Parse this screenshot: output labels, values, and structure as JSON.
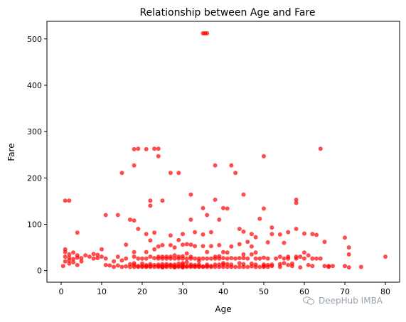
{
  "chart_data": {
    "type": "scatter",
    "title": "Relationship between Age and Fare",
    "xlabel": "Age",
    "ylabel": "Fare",
    "xlim": [
      -3.5,
      83.5
    ],
    "ylim": [
      -25,
      538
    ],
    "xticks": [
      0,
      10,
      20,
      30,
      40,
      50,
      60,
      70,
      80
    ],
    "yticks": [
      0,
      100,
      200,
      300,
      400,
      500
    ],
    "grid": false,
    "marker_color": "#ff0000",
    "points": [
      [
        35,
        512
      ],
      [
        36,
        512
      ],
      [
        35.5,
        512
      ],
      [
        18,
        262
      ],
      [
        19,
        263
      ],
      [
        21,
        262
      ],
      [
        23,
        263
      ],
      [
        24,
        263
      ],
      [
        24,
        247
      ],
      [
        64,
        263
      ],
      [
        15,
        211
      ],
      [
        18,
        227
      ],
      [
        27,
        211
      ],
      [
        29,
        211
      ],
      [
        38,
        227
      ],
      [
        42,
        227
      ],
      [
        43,
        211
      ],
      [
        50,
        247
      ],
      [
        32,
        164
      ],
      [
        45,
        164
      ],
      [
        1,
        151
      ],
      [
        2,
        151
      ],
      [
        22,
        151
      ],
      [
        22,
        140
      ],
      [
        25,
        151
      ],
      [
        38,
        153
      ],
      [
        58,
        153
      ],
      [
        58,
        146
      ],
      [
        35,
        135
      ],
      [
        36,
        120
      ],
      [
        40,
        135
      ],
      [
        41,
        134
      ],
      [
        50,
        134
      ],
      [
        39,
        110
      ],
      [
        32,
        110
      ],
      [
        11,
        120
      ],
      [
        14,
        120
      ],
      [
        4,
        82
      ],
      [
        17,
        110
      ],
      [
        18,
        108
      ],
      [
        19,
        90
      ],
      [
        21,
        79
      ],
      [
        23,
        82
      ],
      [
        27,
        76
      ],
      [
        30,
        79
      ],
      [
        33,
        83
      ],
      [
        35,
        78
      ],
      [
        37,
        83
      ],
      [
        44,
        90
      ],
      [
        45,
        84
      ],
      [
        47,
        79
      ],
      [
        49,
        112
      ],
      [
        52,
        93
      ],
      [
        52,
        79
      ],
      [
        54,
        78
      ],
      [
        56,
        83
      ],
      [
        60,
        80
      ],
      [
        62,
        79
      ],
      [
        63,
        77
      ],
      [
        65,
        62
      ],
      [
        70,
        71
      ],
      [
        71,
        50
      ],
      [
        71,
        35
      ],
      [
        80,
        30
      ],
      [
        74,
        8
      ],
      [
        70,
        10
      ],
      [
        71,
        7
      ],
      [
        58,
        90
      ],
      [
        48,
        72
      ],
      [
        55,
        60
      ],
      [
        59,
        30
      ],
      [
        66,
        10
      ],
      [
        62,
        10
      ],
      [
        61,
        12
      ],
      [
        60,
        26
      ],
      [
        56,
        26
      ],
      [
        54,
        30
      ],
      [
        51,
        26
      ],
      [
        50,
        13
      ],
      [
        52,
        10
      ],
      [
        0.5,
        10
      ],
      [
        1,
        20
      ],
      [
        1,
        30
      ],
      [
        1,
        40
      ],
      [
        1,
        46
      ],
      [
        2,
        15
      ],
      [
        2,
        22
      ],
      [
        2,
        28
      ],
      [
        2,
        35
      ],
      [
        3,
        18
      ],
      [
        3,
        25
      ],
      [
        3,
        39
      ],
      [
        4,
        12
      ],
      [
        4,
        28
      ],
      [
        4,
        33
      ],
      [
        5,
        20
      ],
      [
        5,
        27
      ],
      [
        6,
        33
      ],
      [
        7,
        30
      ],
      [
        8,
        26
      ],
      [
        8,
        36
      ],
      [
        9,
        27
      ],
      [
        9,
        34
      ],
      [
        10,
        30
      ],
      [
        10,
        46
      ],
      [
        11,
        12
      ],
      [
        11,
        26
      ],
      [
        12,
        11
      ],
      [
        13,
        8
      ],
      [
        13,
        20
      ],
      [
        14,
        30
      ],
      [
        14,
        11
      ],
      [
        15,
        8
      ],
      [
        15,
        22
      ],
      [
        16,
        9
      ],
      [
        16,
        26
      ],
      [
        16,
        56
      ],
      [
        17,
        8
      ],
      [
        17,
        14
      ],
      [
        18,
        8
      ],
      [
        18,
        12
      ],
      [
        18,
        16
      ],
      [
        18,
        30
      ],
      [
        18,
        40
      ],
      [
        19,
        8
      ],
      [
        19,
        10
      ],
      [
        19,
        26
      ],
      [
        20,
        8
      ],
      [
        20,
        10
      ],
      [
        20,
        15
      ],
      [
        20,
        26
      ],
      [
        21,
        8
      ],
      [
        21,
        9
      ],
      [
        21,
        12
      ],
      [
        21,
        26
      ],
      [
        21,
        40
      ],
      [
        22,
        8
      ],
      [
        22,
        10
      ],
      [
        22,
        14
      ],
      [
        22,
        30
      ],
      [
        22,
        65
      ],
      [
        23,
        8
      ],
      [
        23,
        12
      ],
      [
        23,
        27
      ],
      [
        23,
        46
      ],
      [
        24,
        8
      ],
      [
        24,
        10
      ],
      [
        24,
        13
      ],
      [
        24,
        26
      ],
      [
        24,
        30
      ],
      [
        24,
        52
      ],
      [
        25,
        7
      ],
      [
        25,
        8
      ],
      [
        25,
        10
      ],
      [
        25,
        14
      ],
      [
        25,
        26
      ],
      [
        25,
        30
      ],
      [
        25,
        55
      ],
      [
        26,
        8
      ],
      [
        26,
        10
      ],
      [
        26,
        14
      ],
      [
        26,
        26
      ],
      [
        26,
        30
      ],
      [
        27,
        8
      ],
      [
        27,
        11
      ],
      [
        27,
        13
      ],
      [
        27,
        26
      ],
      [
        27,
        30
      ],
      [
        27,
        55
      ],
      [
        28,
        7
      ],
      [
        28,
        8
      ],
      [
        28,
        10
      ],
      [
        28,
        13
      ],
      [
        28,
        26
      ],
      [
        28,
        33
      ],
      [
        28,
        50
      ],
      [
        29,
        8
      ],
      [
        29,
        10
      ],
      [
        29,
        15
      ],
      [
        29,
        26
      ],
      [
        29,
        30
      ],
      [
        29,
        66
      ],
      [
        30,
        7
      ],
      [
        30,
        8
      ],
      [
        30,
        10
      ],
      [
        30,
        13
      ],
      [
        30,
        16
      ],
      [
        30,
        26
      ],
      [
        30,
        31
      ],
      [
        30,
        56
      ],
      [
        31,
        8
      ],
      [
        31,
        10
      ],
      [
        31,
        18
      ],
      [
        31,
        26
      ],
      [
        31,
        37
      ],
      [
        31,
        57
      ],
      [
        32,
        8
      ],
      [
        32,
        10
      ],
      [
        32,
        13
      ],
      [
        32,
        26
      ],
      [
        32,
        30
      ],
      [
        32,
        56
      ],
      [
        33,
        8
      ],
      [
        33,
        9
      ],
      [
        33,
        12
      ],
      [
        33,
        26
      ],
      [
        33,
        53
      ],
      [
        34,
        8
      ],
      [
        34,
        10
      ],
      [
        34,
        13
      ],
      [
        34,
        21
      ],
      [
        34,
        26
      ],
      [
        35,
        8
      ],
      [
        35,
        9
      ],
      [
        35,
        26
      ],
      [
        35,
        53
      ],
      [
        36,
        8
      ],
      [
        36,
        10
      ],
      [
        36,
        13
      ],
      [
        36,
        26
      ],
      [
        36,
        40
      ],
      [
        37,
        8
      ],
      [
        37,
        10
      ],
      [
        37,
        26
      ],
      [
        37,
        53
      ],
      [
        38,
        8
      ],
      [
        38,
        13
      ],
      [
        38,
        26
      ],
      [
        38,
        30
      ],
      [
        39,
        8
      ],
      [
        39,
        13
      ],
      [
        39,
        26
      ],
      [
        39,
        31
      ],
      [
        39,
        55
      ],
      [
        40,
        8
      ],
      [
        40,
        13
      ],
      [
        40,
        16
      ],
      [
        40,
        27
      ],
      [
        40,
        40
      ],
      [
        41,
        8
      ],
      [
        41,
        14
      ],
      [
        41,
        26
      ],
      [
        41,
        39
      ],
      [
        42,
        8
      ],
      [
        42,
        13
      ],
      [
        42,
        27
      ],
      [
        42,
        52
      ],
      [
        43,
        8
      ],
      [
        43,
        26
      ],
      [
        44,
        8
      ],
      [
        44,
        16
      ],
      [
        44,
        27
      ],
      [
        44,
        57
      ],
      [
        45,
        8
      ],
      [
        45,
        14
      ],
      [
        45,
        27
      ],
      [
        45,
        35
      ],
      [
        46,
        8
      ],
      [
        46,
        26
      ],
      [
        46,
        62
      ],
      [
        47,
        9
      ],
      [
        47,
        15
      ],
      [
        47,
        35
      ],
      [
        47,
        52
      ],
      [
        48,
        8
      ],
      [
        48,
        13
      ],
      [
        48,
        26
      ],
      [
        48,
        39
      ],
      [
        49,
        8
      ],
      [
        49,
        26
      ],
      [
        50,
        8
      ],
      [
        50,
        10
      ],
      [
        50,
        28
      ],
      [
        51,
        8
      ],
      [
        51,
        12
      ],
      [
        51,
        61
      ],
      [
        52,
        13
      ],
      [
        53,
        26
      ],
      [
        54,
        8
      ],
      [
        54,
        14
      ],
      [
        55,
        16
      ],
      [
        55,
        26
      ],
      [
        56,
        12
      ],
      [
        56,
        30
      ],
      [
        57,
        10
      ],
      [
        57,
        15
      ],
      [
        58,
        26
      ],
      [
        58,
        30
      ],
      [
        59,
        7
      ],
      [
        60,
        39
      ],
      [
        61,
        33
      ],
      [
        62,
        26
      ],
      [
        63,
        26
      ],
      [
        64,
        26
      ],
      [
        65,
        10
      ],
      [
        66,
        8
      ],
      [
        67,
        10
      ]
    ]
  },
  "watermark": {
    "text": "DeepHub IMBA"
  }
}
